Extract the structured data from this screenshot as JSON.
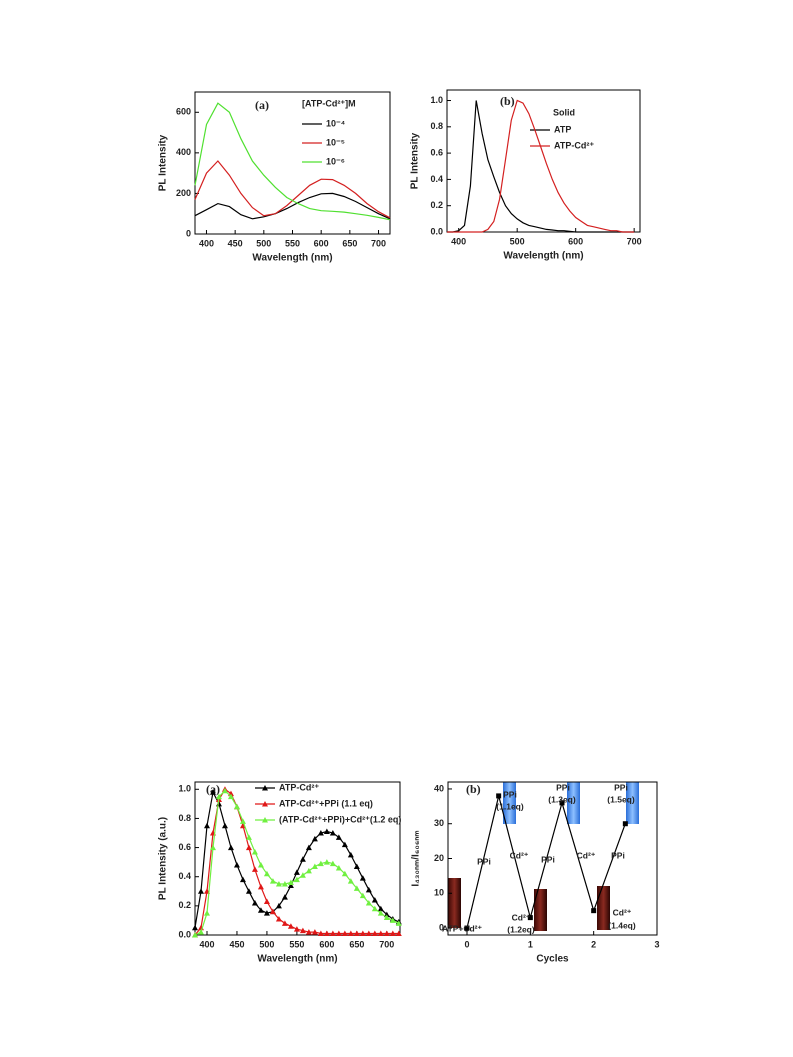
{
  "chart_data": [
    {
      "type": "line",
      "panel": "(a)",
      "xlabel": "Wavelength (nm)",
      "ylabel": "PL Intensity",
      "legend_title": "[ATP-Cd²⁺]M",
      "x": [
        380,
        400,
        420,
        440,
        460,
        480,
        500,
        520,
        540,
        560,
        580,
        600,
        620,
        640,
        660,
        680,
        700,
        720
      ],
      "series": [
        {
          "name": "10⁻⁴",
          "color": "#000000",
          "values": [
            90,
            120,
            150,
            135,
            95,
            75,
            85,
            100,
            125,
            155,
            180,
            198,
            200,
            185,
            160,
            130,
            100,
            75
          ]
        },
        {
          "name": "10⁻⁵",
          "color": "#d42020",
          "values": [
            170,
            300,
            360,
            290,
            200,
            130,
            90,
            100,
            140,
            190,
            240,
            270,
            268,
            240,
            200,
            150,
            110,
            80
          ]
        },
        {
          "name": "10⁻⁶",
          "color": "#50e030",
          "values": [
            240,
            540,
            645,
            600,
            470,
            360,
            290,
            230,
            180,
            150,
            125,
            115,
            112,
            108,
            100,
            92,
            82,
            70
          ]
        }
      ],
      "xlim": [
        380,
        720
      ],
      "xticks": [
        400,
        450,
        500,
        550,
        600,
        650,
        700
      ],
      "ylim": [
        0,
        700
      ],
      "yticks": [
        0,
        200,
        400,
        600
      ]
    },
    {
      "type": "line",
      "panel": "(b)",
      "xlabel": "Wavelength (nm)",
      "ylabel": "PL Intensity",
      "legend_title": "Solid",
      "x": [
        380,
        390,
        400,
        410,
        420,
        430,
        440,
        450,
        460,
        470,
        480,
        490,
        500,
        510,
        520,
        530,
        540,
        550,
        560,
        570,
        580,
        590,
        600,
        610,
        620,
        630,
        640,
        650,
        660,
        670,
        680,
        690,
        700
      ],
      "series": [
        {
          "name": "ATP",
          "color": "#000000",
          "values": [
            0,
            0,
            0.01,
            0.05,
            0.35,
            1.0,
            0.75,
            0.55,
            0.42,
            0.3,
            0.2,
            0.14,
            0.1,
            0.07,
            0.05,
            0.04,
            0.03,
            0.02,
            0.015,
            0.01,
            0.01,
            0.005,
            0,
            0,
            0,
            0,
            0,
            0,
            0,
            0,
            0,
            0,
            0
          ]
        },
        {
          "name": "ATP-Cd²⁺",
          "color": "#d42020",
          "values": [
            0,
            0,
            0,
            0,
            0,
            0,
            0,
            0.02,
            0.08,
            0.25,
            0.55,
            0.85,
            1.0,
            0.98,
            0.9,
            0.78,
            0.65,
            0.52,
            0.4,
            0.3,
            0.22,
            0.16,
            0.11,
            0.08,
            0.05,
            0.04,
            0.03,
            0.02,
            0.01,
            0.01,
            0,
            0,
            0
          ]
        }
      ],
      "xlim": [
        380,
        710
      ],
      "xticks": [
        400,
        500,
        600,
        700
      ],
      "ylim": [
        0,
        1.08
      ],
      "yticks": [
        {
          "value": 0,
          "label": "0.0"
        },
        {
          "value": 0.2,
          "label": "0.2"
        },
        {
          "value": 0.4,
          "label": "0.4"
        },
        {
          "value": 0.6,
          "label": "0.6"
        },
        {
          "value": 0.8,
          "label": "0.8"
        },
        {
          "value": 1,
          "label": "1.0"
        }
      ]
    },
    {
      "type": "line",
      "panel": "(a)",
      "xlabel": "Wavelength (nm)",
      "ylabel": "PL Intensity (a.u.)",
      "marker": "triangle",
      "x": [
        380,
        390,
        400,
        410,
        420,
        430,
        440,
        450,
        460,
        470,
        480,
        490,
        500,
        510,
        520,
        530,
        540,
        550,
        560,
        570,
        580,
        590,
        600,
        610,
        620,
        630,
        640,
        650,
        660,
        670,
        680,
        690,
        700,
        710,
        720
      ],
      "series": [
        {
          "name": "ATP-Cd²⁺",
          "color": "#000000",
          "values": [
            0.05,
            0.3,
            0.75,
            0.98,
            0.9,
            0.75,
            0.6,
            0.48,
            0.38,
            0.3,
            0.22,
            0.17,
            0.15,
            0.16,
            0.2,
            0.26,
            0.34,
            0.43,
            0.52,
            0.6,
            0.66,
            0.7,
            0.71,
            0.7,
            0.67,
            0.62,
            0.55,
            0.47,
            0.39,
            0.31,
            0.24,
            0.18,
            0.14,
            0.11,
            0.09
          ]
        },
        {
          "name": "ATP-Cd²⁺+PPi (1.1 eq)",
          "color": "#e01818",
          "values": [
            0,
            0.05,
            0.3,
            0.7,
            0.93,
            1.0,
            0.97,
            0.88,
            0.75,
            0.6,
            0.45,
            0.33,
            0.23,
            0.16,
            0.11,
            0.08,
            0.06,
            0.04,
            0.03,
            0.02,
            0.02,
            0.01,
            0.01,
            0.01,
            0.01,
            0.01,
            0.01,
            0.01,
            0.01,
            0.01,
            0.01,
            0.01,
            0.01,
            0.01,
            0.01
          ]
        },
        {
          "name": "(ATP-Cd²⁺+PPi)+Cd²⁺(1.2 eq)",
          "color": "#70f040",
          "values": [
            0,
            0.02,
            0.15,
            0.6,
            0.95,
            0.99,
            0.95,
            0.88,
            0.78,
            0.67,
            0.57,
            0.48,
            0.42,
            0.37,
            0.35,
            0.35,
            0.36,
            0.38,
            0.41,
            0.44,
            0.47,
            0.49,
            0.5,
            0.49,
            0.46,
            0.42,
            0.37,
            0.32,
            0.27,
            0.22,
            0.18,
            0.15,
            0.12,
            0.1,
            0.08
          ]
        }
      ],
      "xlim": [
        380,
        722
      ],
      "xticks": [
        400,
        450,
        500,
        550,
        600,
        650,
        700
      ],
      "ylim": [
        0,
        1.05
      ],
      "yticks": [
        {
          "value": 0,
          "label": "0.0"
        },
        {
          "value": 0.2,
          "label": "0.2"
        },
        {
          "value": 0.4,
          "label": "0.4"
        },
        {
          "value": 0.6,
          "label": "0.6"
        },
        {
          "value": 0.8,
          "label": "0.8"
        },
        {
          "value": 1,
          "label": "1.0"
        }
      ]
    },
    {
      "type": "line",
      "panel": "(b)",
      "xlabel": "Cycles",
      "ylabel": "I₄₃₀ₙₘ/I₆₀₆ₙₘ",
      "marker": "square",
      "x": [
        0,
        0.5,
        1,
        1.5,
        2,
        2.5
      ],
      "series": [
        {
          "color": "#000000",
          "values": [
            0,
            38,
            3,
            36,
            5,
            30
          ]
        }
      ],
      "xlim": [
        -0.3,
        3
      ],
      "xticks": [
        0,
        1,
        2,
        3
      ],
      "ylim": [
        -2,
        42
      ],
      "yticks": [
        0,
        10,
        20,
        30,
        40
      ],
      "annotations": [
        "PPi",
        "(1.1eq)",
        "PPi",
        "Cd²⁺",
        "Cd²⁺",
        "(1.2eq)",
        "PPi",
        "(1.3eq)",
        "PPi",
        "Cd²⁺",
        "PPi",
        "(1.5eq)",
        "PPi",
        "Cd²⁺",
        "(1.4eq)",
        "ATP+Cd²⁺"
      ]
    }
  ]
}
